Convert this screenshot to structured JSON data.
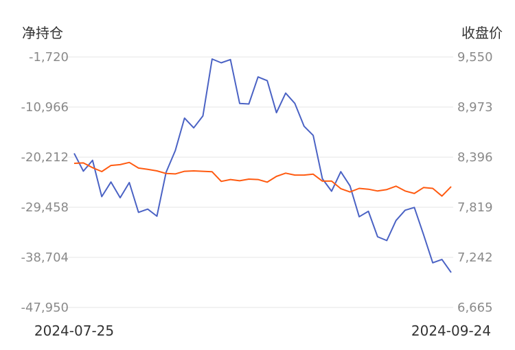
{
  "chart_data": {
    "type": "line",
    "y_left_label": "净持仓",
    "y_right_label": "收盘价",
    "x_start_label": "2024-07-25",
    "x_end_label": "2024-09-24",
    "y_left_ticks": [
      "-1,720",
      "-10,966",
      "-20,212",
      "-29,458",
      "-38,704",
      "-47,950"
    ],
    "y_right_ticks": [
      "9,550",
      "8,973",
      "8,396",
      "7,819",
      "7,242",
      "6,665"
    ],
    "y_left_range": [
      -47950,
      -1720
    ],
    "y_right_range": [
      6665,
      9550
    ],
    "grid": true,
    "legend": "none",
    "series": [
      {
        "axis": "left",
        "color": "#4a62c4",
        "values": [
          -19500,
          -22800,
          -20800,
          -27500,
          -24800,
          -27700,
          -24900,
          -30400,
          -29800,
          -31100,
          -23000,
          -19000,
          -13000,
          -14800,
          -12600,
          -2100,
          -2800,
          -2200,
          -10300,
          -10400,
          -5400,
          -6100,
          -12000,
          -8400,
          -10300,
          -14500,
          -16200,
          -24200,
          -26500,
          -22900,
          -25500,
          -31200,
          -30200,
          -34900,
          -35600,
          -31900,
          -30000,
          -29500,
          -34500,
          -39700,
          -39100,
          -41500
        ]
      },
      {
        "axis": "right",
        "color": "#ff5a10",
        "values": [
          8325,
          8330,
          8275,
          8230,
          8300,
          8310,
          8335,
          8270,
          8255,
          8238,
          8208,
          8203,
          8233,
          8238,
          8233,
          8228,
          8117,
          8138,
          8124,
          8143,
          8138,
          8108,
          8175,
          8212,
          8190,
          8190,
          8200,
          8120,
          8120,
          8033,
          7995,
          8036,
          8027,
          8006,
          8023,
          8062,
          8006,
          7978,
          8046,
          8036,
          7948,
          8057
        ]
      }
    ]
  }
}
